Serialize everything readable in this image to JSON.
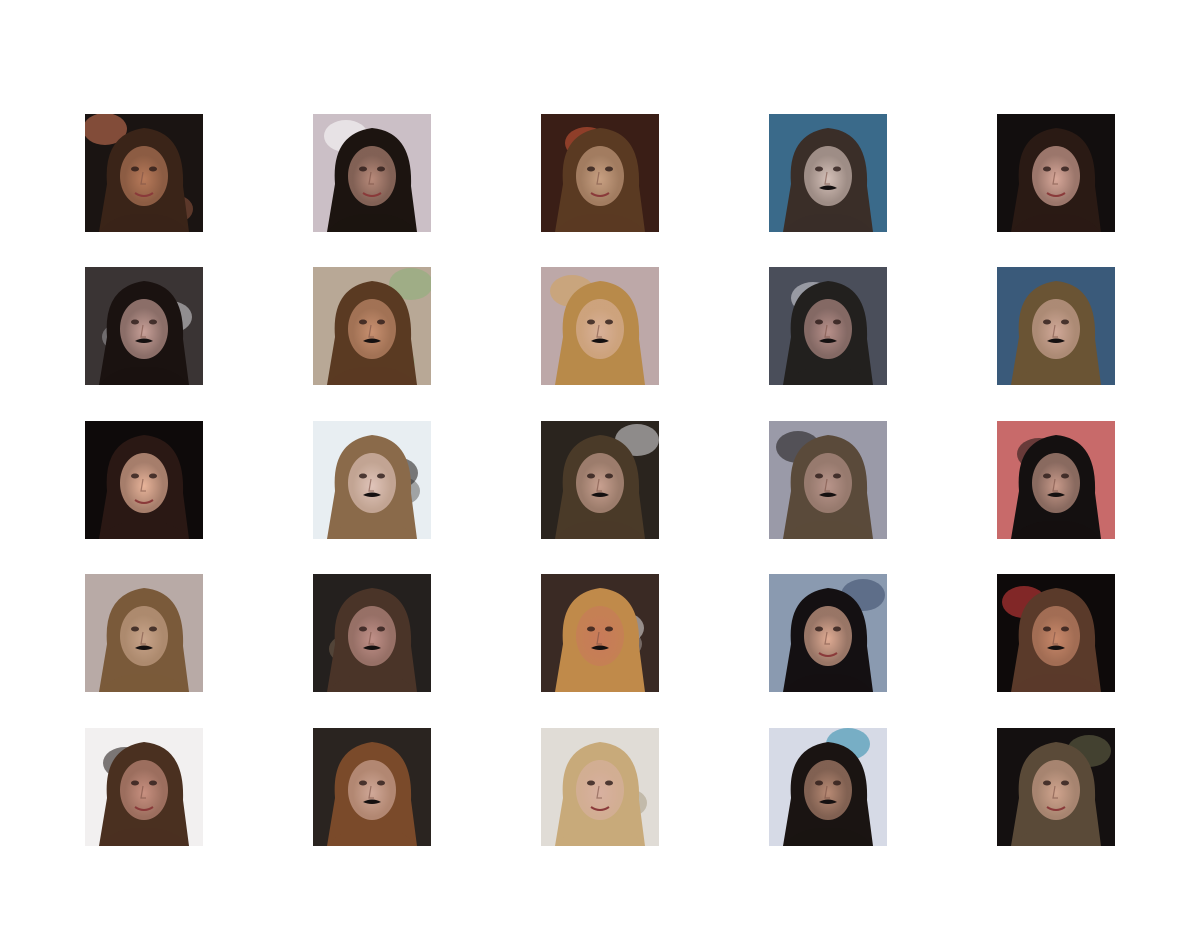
{
  "grid": {
    "rows": 5,
    "cols": 5,
    "content": "generated-face-samples"
  },
  "tiles": [
    {
      "bg": "#1a1412",
      "accent": "#d97a5a",
      "hair": "#3a2418",
      "skin": "#b87a5a",
      "mustache": false
    },
    {
      "bg": "#cbbfc6",
      "accent": "#ffffff",
      "hair": "#1c1410",
      "skin": "#b88a7a",
      "mustache": false
    },
    {
      "bg": "#3a1e16",
      "accent": "#d65a3a",
      "hair": "#5a3a22",
      "skin": "#c8a082",
      "mustache": false
    },
    {
      "bg": "#3a6a8a",
      "accent": "#e0c8b0",
      "hair": "#3a2e28",
      "skin": "#d4c0b8",
      "mustache": true
    },
    {
      "bg": "#120e0e",
      "accent": "#1e1412",
      "hair": "#2a1a14",
      "skin": "#d8a89a",
      "mustache": false
    },
    {
      "bg": "#3a3434",
      "accent": "#d8d8dc",
      "hair": "#1a1210",
      "skin": "#c8a098",
      "mustache": true
    },
    {
      "bg": "#b8a896",
      "accent": "#8ab07a",
      "hair": "#5a3a22",
      "skin": "#c89070",
      "mustache": true
    },
    {
      "bg": "#bda8a8",
      "accent": "#d4a25a",
      "hair": "#b88a4a",
      "skin": "#d8b098",
      "mustache": true
    },
    {
      "bg": "#4a4e5a",
      "accent": "#d8d8e0",
      "hair": "#22201e",
      "skin": "#b8908a",
      "mustache": true
    },
    {
      "bg": "#3a5a7a",
      "accent": "#a89a7a",
      "hair": "#6a5434",
      "skin": "#d0a898",
      "mustache": true
    },
    {
      "bg": "#0e0a0a",
      "accent": "#e08040",
      "hair": "#2a1814",
      "skin": "#e8b49a",
      "mustache": false
    },
    {
      "bg": "#e8eef2",
      "accent": "#1a1614",
      "hair": "#8a6a4a",
      "skin": "#e0c4ba",
      "mustache": true
    },
    {
      "bg": "#2a241e",
      "accent": "#e0e0e4",
      "hair": "#4a3a28",
      "skin": "#c8a090",
      "mustache": true
    },
    {
      "bg": "#9a9aa8",
      "accent": "#1a1614",
      "hair": "#5a4a3a",
      "skin": "#b8948a",
      "mustache": true
    },
    {
      "bg": "#c86a6a",
      "accent": "#1a1210",
      "hair": "#141010",
      "skin": "#c89a8a",
      "mustache": true
    },
    {
      "bg": "#b8aaa6",
      "accent": "#e8e0dc",
      "hair": "#7a5a3a",
      "skin": "#c8a48a",
      "mustache": true
    },
    {
      "bg": "#24201e",
      "accent": "#a88a6a",
      "hair": "#4a3428",
      "skin": "#c09088",
      "mustache": true
    },
    {
      "bg": "#3a2a24",
      "accent": "#e4e0e0",
      "hair": "#c08a4a",
      "skin": "#c87a5a",
      "mustache": true
    },
    {
      "bg": "#8a9ab0",
      "accent": "#3a4a6a",
      "hair": "#141012",
      "skin": "#e0ac94",
      "mustache": false
    },
    {
      "bg": "#0e0a0a",
      "accent": "#e04040",
      "hair": "#5a3a2a",
      "skin": "#c8886a",
      "mustache": true
    },
    {
      "bg": "#f2f0f0",
      "accent": "#1a1210",
      "hair": "#4a3020",
      "skin": "#c89080",
      "mustache": false
    },
    {
      "bg": "#2a2420",
      "accent": "#e8e4e4",
      "hair": "#7a4a2a",
      "skin": "#d0a898",
      "mustache": true
    },
    {
      "bg": "#e0dcd6",
      "accent": "#8a7a5a",
      "hair": "#c8aa7a",
      "skin": "#d8b0a0",
      "mustache": false
    },
    {
      "bg": "#d6dae6",
      "accent": "#2a8aaa",
      "hair": "#1a1412",
      "skin": "#b88a74",
      "mustache": true
    },
    {
      "bg": "#141010",
      "accent": "#6a6a4a",
      "hair": "#5a4a38",
      "skin": "#d0a48e",
      "mustache": false
    }
  ]
}
